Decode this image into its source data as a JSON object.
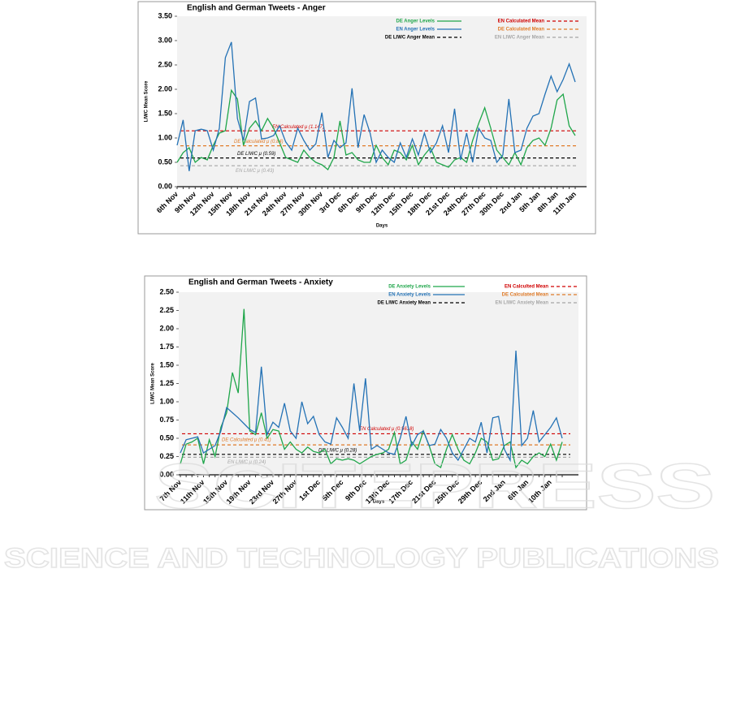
{
  "chart_data": [
    {
      "type": "line",
      "title": "English and German Tweets - Anger",
      "x_label": "Days",
      "y_label": "LIWC Mean Score",
      "categories": [
        "6th Nov",
        null,
        null,
        "9th Nov",
        null,
        null,
        "12th Nov",
        null,
        null,
        "15th Nov",
        null,
        null,
        "18th Nov",
        null,
        null,
        "21st Nov",
        null,
        null,
        "24th Nov",
        null,
        null,
        "27th Nov",
        null,
        null,
        "30th Nov",
        null,
        null,
        "3rd Dec",
        null,
        null,
        "6th Dec",
        null,
        null,
        "9th Dec",
        null,
        null,
        "12th Dec",
        null,
        null,
        "15th Dec",
        null,
        null,
        "18th Dec",
        null,
        null,
        "21st Dec",
        null,
        null,
        "24th Dec",
        null,
        null,
        "27th Dec",
        null,
        null,
        "30th Dec",
        null,
        null,
        "2nd Jan",
        null,
        null,
        "5th Jan",
        null,
        null,
        "8th Jan",
        null,
        null,
        "11th Jan"
      ],
      "series": [
        {
          "name": "DE Anger Levels",
          "color": "#1fa64a",
          "values": [
            0.5,
            0.7,
            0.8,
            0.5,
            0.6,
            0.55,
            0.85,
            1.1,
            1.15,
            1.98,
            1.8,
            0.85,
            1.2,
            1.35,
            1.15,
            1.4,
            1.2,
            0.9,
            0.6,
            0.55,
            0.5,
            0.75,
            0.6,
            0.5,
            0.45,
            0.35,
            0.6,
            1.35,
            0.65,
            0.7,
            0.55,
            0.5,
            0.5,
            0.85,
            0.6,
            0.45,
            0.75,
            0.7,
            0.55,
            0.85,
            0.45,
            0.65,
            0.8,
            0.5,
            0.45,
            0.4,
            0.55,
            0.6,
            0.5,
            0.95,
            1.3,
            1.62,
            1.2,
            0.75,
            0.6,
            0.45,
            0.7,
            0.45,
            0.8,
            0.95,
            1.0,
            0.85,
            1.2,
            1.78,
            1.9,
            1.25,
            1.05
          ]
        },
        {
          "name": "EN Anger Levels",
          "color": "#2472b5",
          "values": [
            0.85,
            1.37,
            0.32,
            1.15,
            1.18,
            1.15,
            0.75,
            1.2,
            2.65,
            2.97,
            1.4,
            0.95,
            1.75,
            1.82,
            0.98,
            1.0,
            1.05,
            1.25,
            0.92,
            0.75,
            1.2,
            0.95,
            0.75,
            0.88,
            1.52,
            0.6,
            0.95,
            0.8,
            0.9,
            2.02,
            0.8,
            1.48,
            1.1,
            0.5,
            0.75,
            0.6,
            0.5,
            0.9,
            0.6,
            0.98,
            0.65,
            1.1,
            0.7,
            0.9,
            1.25,
            0.7,
            1.6,
            0.55,
            1.1,
            0.5,
            1.2,
            1.0,
            0.95,
            0.5,
            0.65,
            1.8,
            0.7,
            0.75,
            1.2,
            1.45,
            1.5,
            1.9,
            2.27,
            1.95,
            2.2,
            2.52,
            2.15
          ]
        }
      ],
      "mean_lines": [
        {
          "name": "EN Calculated Mean",
          "label": "EN Calculated μ (1.147)",
          "value": 1.147,
          "color": "#d00000"
        },
        {
          "name": "DE Calculated Mean",
          "label": "DE Calculated μ (0.84)",
          "value": 0.84,
          "color": "#e07b28"
        },
        {
          "name": "DE LIWC Anger Mean",
          "label": "DE LIWC μ (0.59)",
          "value": 0.59,
          "color": "#000000"
        },
        {
          "name": "EN LIWC Anger Mean",
          "label": "EN LIWC μ (0.43)",
          "value": 0.43,
          "color": "#a6a6a6"
        }
      ],
      "ylim": [
        0,
        3.5
      ],
      "yticks": [
        {
          "value": 0,
          "label": "0.00"
        },
        {
          "value": 0.5,
          "label": "0.50"
        },
        {
          "value": 1,
          "label": "1.00"
        },
        {
          "value": 1.5,
          "label": "1.50"
        },
        {
          "value": 2,
          "label": "2.00"
        },
        {
          "value": 2.5,
          "label": "2.50"
        },
        {
          "value": 3,
          "label": "3.00"
        },
        {
          "value": 3.5,
          "label": "3.50"
        }
      ],
      "grid": false
    },
    {
      "type": "line",
      "title": "English and German Tweets - Anxiety",
      "x_label": "Days",
      "y_label": "LIWC Mean Score",
      "categories": [
        "7th Nov",
        null,
        null,
        null,
        "11th Nov",
        null,
        null,
        null,
        "15th Nov",
        null,
        null,
        null,
        "19th Nov",
        null,
        null,
        null,
        "23rd Nov",
        null,
        null,
        null,
        "27th Nov",
        null,
        null,
        null,
        "1st Dec",
        null,
        null,
        null,
        "5th Dec",
        null,
        null,
        null,
        "9th Dec",
        null,
        null,
        null,
        "13th Dec",
        null,
        null,
        null,
        "17th Dec",
        null,
        null,
        null,
        "21st Dec",
        null,
        null,
        null,
        "25th Dec",
        null,
        null,
        null,
        "29th Dec",
        null,
        null,
        null,
        "2nd Jan",
        null,
        null,
        null,
        "6th Jan",
        null,
        null,
        null,
        "10th Jan",
        null,
        null
      ],
      "series": [
        {
          "name": "DE Anxiety Levels",
          "color": "#1fa64a",
          "values": [
            0.15,
            0.42,
            0.45,
            0.5,
            0.15,
            0.48,
            0.25,
            0.65,
            0.85,
            1.4,
            1.12,
            2.27,
            0.6,
            0.55,
            0.85,
            0.5,
            0.62,
            0.6,
            0.35,
            0.45,
            0.35,
            0.3,
            0.38,
            0.32,
            0.3,
            0.35,
            0.15,
            0.22,
            0.2,
            0.22,
            0.2,
            0.15,
            0.2,
            0.25,
            0.28,
            0.3,
            0.35,
            0.58,
            0.15,
            0.2,
            0.45,
            0.35,
            0.6,
            0.4,
            0.15,
            0.1,
            0.35,
            0.55,
            0.35,
            0.2,
            0.15,
            0.3,
            0.5,
            0.45,
            0.2,
            0.22,
            0.4,
            0.45,
            0.1,
            0.2,
            0.15,
            0.25,
            0.3,
            0.25,
            0.42,
            0.2,
            0.45
          ]
        },
        {
          "name": "EN Anxiety Levels",
          "color": "#2472b5",
          "values": [
            0.3,
            0.48,
            0.5,
            0.52,
            0.3,
            0.35,
            0.4,
            0.6,
            0.92,
            0.85,
            0.78,
            0.7,
            0.62,
            0.58,
            1.48,
            0.55,
            0.72,
            0.65,
            0.98,
            0.6,
            0.5,
            1.0,
            0.7,
            0.8,
            0.55,
            0.45,
            0.42,
            0.78,
            0.65,
            0.5,
            1.25,
            0.6,
            1.32,
            0.35,
            0.4,
            0.35,
            0.3,
            0.28,
            0.5,
            0.8,
            0.4,
            0.55,
            0.6,
            0.4,
            0.42,
            0.62,
            0.5,
            0.3,
            0.2,
            0.35,
            0.5,
            0.45,
            0.72,
            0.3,
            0.78,
            0.8,
            0.35,
            0.2,
            1.7,
            0.4,
            0.5,
            0.88,
            0.45,
            0.55,
            0.65,
            0.78,
            0.5
          ]
        }
      ],
      "mean_lines": [
        {
          "name": "EN Calculted Mean",
          "label": "EN Calculated μ (0.5618)",
          "value": 0.5618,
          "color": "#d00000"
        },
        {
          "name": "DE Calculated Mean",
          "label": "DE Calculated μ (0.41)",
          "value": 0.41,
          "color": "#e07b28"
        },
        {
          "name": "DE LIWC Anxiety Mean",
          "label": "DE LIWC μ (0.28)",
          "value": 0.28,
          "color": "#000000"
        },
        {
          "name": "EN LIWC Anxiety Mean",
          "label": "EN LIWC μ (0.24)",
          "value": 0.24,
          "color": "#a6a6a6"
        }
      ],
      "ylim": [
        0,
        2.5
      ],
      "yticks": [
        {
          "value": 0,
          "label": "0.00"
        },
        {
          "value": 0.25,
          "label": "0.25"
        },
        {
          "value": 0.5,
          "label": "0.50"
        },
        {
          "value": 0.75,
          "label": "0.75"
        },
        {
          "value": 1,
          "label": "1.00"
        },
        {
          "value": 1.25,
          "label": "1.25"
        },
        {
          "value": 1.5,
          "label": "1.50"
        },
        {
          "value": 1.75,
          "label": "1.75"
        },
        {
          "value": 2,
          "label": "2.00"
        },
        {
          "value": 2.25,
          "label": "2.25"
        },
        {
          "value": 2.5,
          "label": "2.50"
        }
      ],
      "grid": false
    }
  ],
  "watermark": {
    "title": "SCITEPRESS",
    "subtitle": "SCIENCE AND TECHNOLOGY PUBLICATIONS"
  }
}
